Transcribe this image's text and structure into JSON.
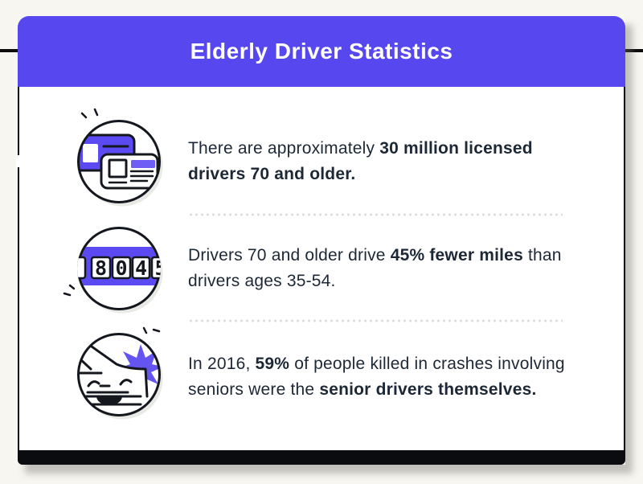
{
  "header": {
    "title": "Elderly Driver Statistics"
  },
  "palette": {
    "accent": "#5747ef",
    "icon-purple": "#5b4af2",
    "stripe": "#6e5ef6",
    "burst": "#6454f0",
    "ink": "#14181e",
    "navy": "#1d2836",
    "bg": "#f7f6f0",
    "dot": "#d8d8d8",
    "band": "#0a0c10"
  },
  "rows": [
    {
      "icon": "drivers-license-icon",
      "segments": [
        {
          "text": "There are approximately ",
          "bold": false
        },
        {
          "text": "30 million licensed\ndrivers 70 and older.",
          "bold": true
        }
      ]
    },
    {
      "icon": "odometer-icon",
      "segments": [
        {
          "text": "Drivers 70 and older drive ",
          "bold": false
        },
        {
          "text": "45% fewer miles",
          "bold": true
        },
        {
          "text": " than\ndrivers ages 35-54.",
          "bold": false
        }
      ]
    },
    {
      "icon": "car-crash-icon",
      "segments": [
        {
          "text": "In 2016, ",
          "bold": false
        },
        {
          "text": "59%",
          "bold": true
        },
        {
          "text": " of people killed in crashes involving\nseniors were the ",
          "bold": false
        },
        {
          "text": "senior drivers themselves.",
          "bold": true
        }
      ]
    }
  ],
  "odometer": {
    "digits": [
      "8",
      "0",
      "4",
      "5"
    ]
  }
}
